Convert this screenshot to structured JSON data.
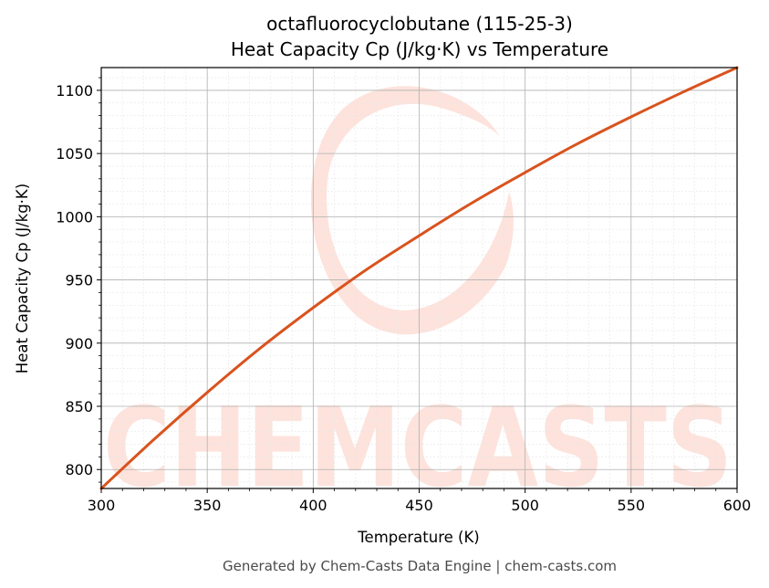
{
  "chart_data": {
    "type": "line",
    "title": "octafluorocyclobutane (115-25-3)",
    "subtitle": "Heat Capacity Cp (J/kg·K) vs Temperature",
    "xlabel": "Temperature (K)",
    "ylabel": "Heat Capacity Cp (J/kg·K)",
    "xlim": [
      300,
      600
    ],
    "ylim": [
      785,
      1118
    ],
    "x_ticks": [
      300,
      350,
      400,
      450,
      500,
      550,
      600
    ],
    "y_ticks": [
      800,
      850,
      900,
      950,
      1000,
      1050,
      1100
    ],
    "grid": true,
    "series": [
      {
        "color": "#d9531e",
        "x": [
          300,
          325,
          350,
          375,
          400,
          425,
          450,
          475,
          500,
          525,
          550,
          575,
          600
        ],
        "y": [
          785,
          824,
          861,
          896,
          928,
          958,
          985,
          1011,
          1035,
          1058,
          1079,
          1099,
          1118
        ]
      }
    ]
  },
  "watermark": {
    "text": "CHEMCASTS",
    "color": "#fde3dc"
  },
  "footer": "Generated by Chem-Casts Data Engine | chem-casts.com"
}
